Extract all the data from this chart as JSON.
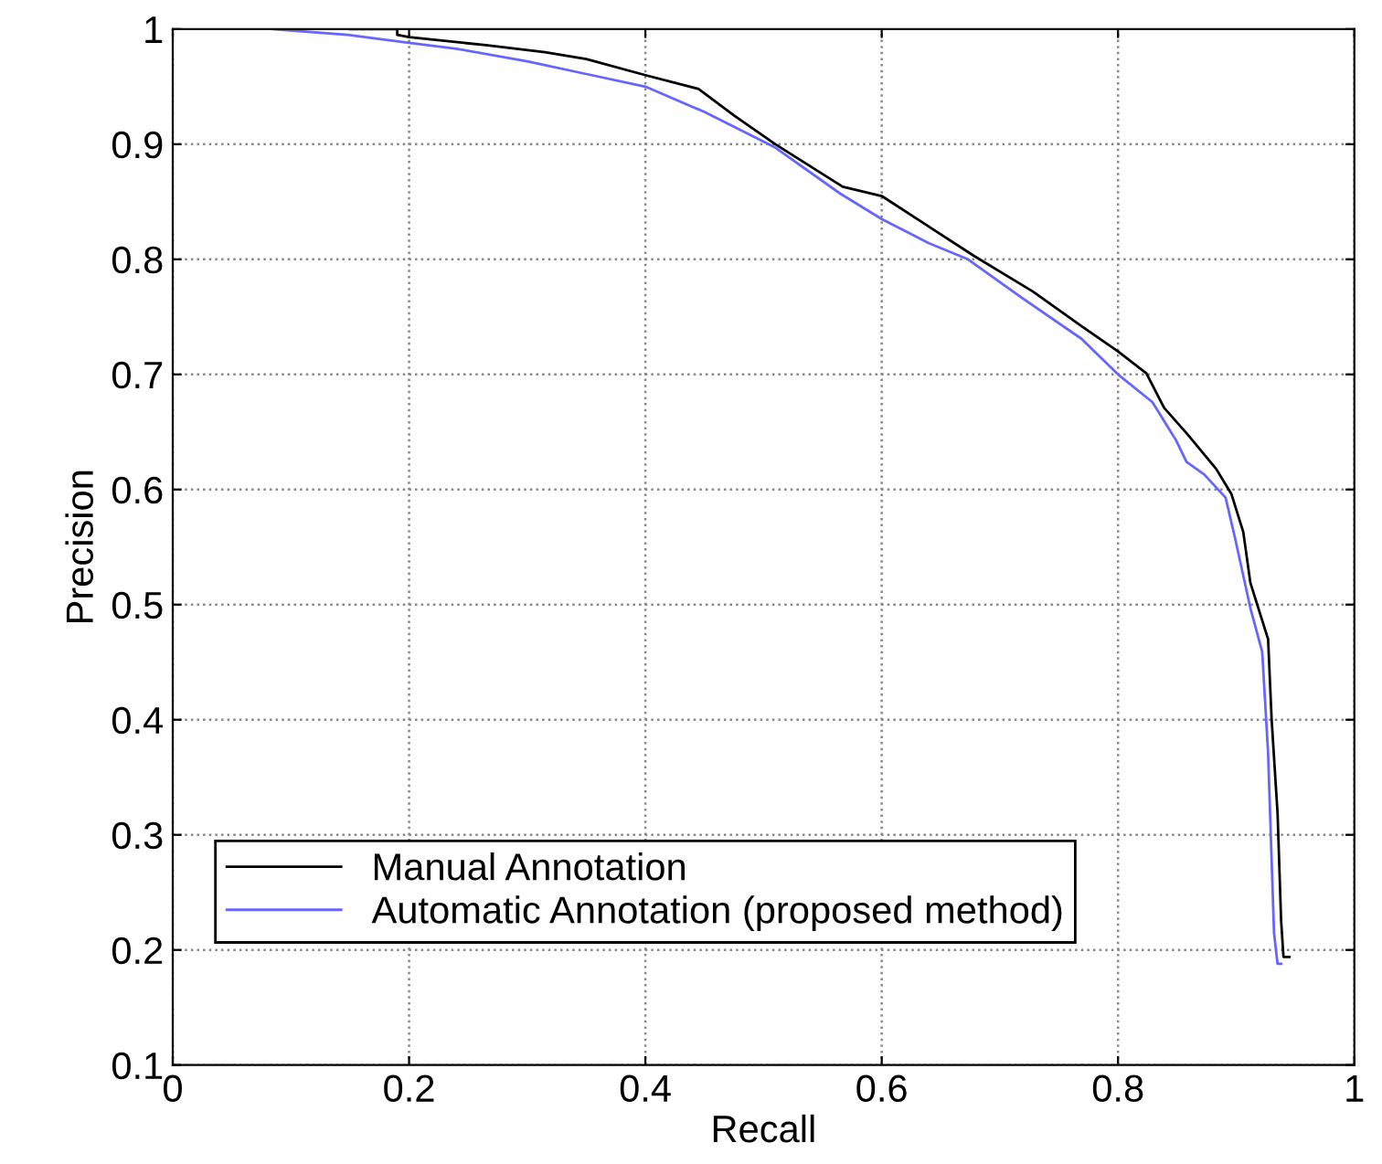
{
  "chart_data": {
    "type": "line",
    "xlabel": "Recall",
    "ylabel": "Precision",
    "xlim": [
      0,
      1
    ],
    "ylim": [
      0.1,
      1
    ],
    "xticks": [
      0,
      0.2,
      0.4,
      0.6,
      0.8,
      1
    ],
    "yticks": [
      0.1,
      0.2,
      0.3,
      0.4,
      0.5,
      0.6,
      0.7,
      0.8,
      0.9,
      1
    ],
    "grid": true,
    "legend": "bottom left",
    "marker": "none",
    "line_style": "solid",
    "series": [
      {
        "name": "Manual Annotation",
        "color": "#000000",
        "x": [
          0.15,
          0.19,
          0.19,
          0.2,
          0.265,
          0.315,
          0.35,
          0.4,
          0.445,
          0.475,
          0.51,
          0.567,
          0.6,
          0.678,
          0.728,
          0.769,
          0.8,
          0.824,
          0.839,
          0.858,
          0.883,
          0.896,
          0.906,
          0.912,
          0.927,
          0.93,
          0.935,
          0.938,
          0.94,
          0.945
        ],
        "values": [
          1.0,
          1.0,
          0.995,
          0.993,
          0.986,
          0.98,
          0.974,
          0.96,
          0.948,
          0.925,
          0.9,
          0.863,
          0.855,
          0.803,
          0.772,
          0.742,
          0.72,
          0.701,
          0.671,
          0.649,
          0.618,
          0.596,
          0.563,
          0.519,
          0.47,
          0.4,
          0.319,
          0.226,
          0.194,
          0.194
        ]
      },
      {
        "name": "Automatic Annotation (proposed method)",
        "color": "#6666ff",
        "x": [
          0.085,
          0.148,
          0.2,
          0.24,
          0.3,
          0.35,
          0.4,
          0.45,
          0.51,
          0.565,
          0.6,
          0.64,
          0.673,
          0.718,
          0.769,
          0.8,
          0.829,
          0.849,
          0.858,
          0.873,
          0.891,
          0.899,
          0.912,
          0.922,
          0.927,
          0.932,
          0.935,
          0.938
        ],
        "values": [
          1.0,
          0.995,
          0.988,
          0.983,
          0.972,
          0.961,
          0.95,
          0.928,
          0.897,
          0.857,
          0.835,
          0.814,
          0.8,
          0.767,
          0.731,
          0.7,
          0.676,
          0.643,
          0.624,
          0.613,
          0.593,
          0.558,
          0.497,
          0.459,
          0.371,
          0.215,
          0.188,
          0.188
        ]
      }
    ]
  }
}
